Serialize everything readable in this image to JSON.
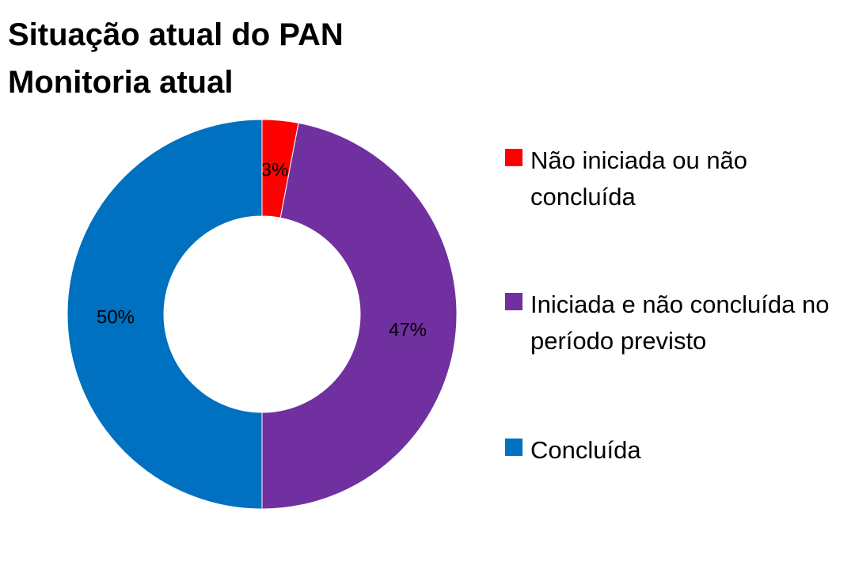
{
  "chart_data": {
    "type": "pie",
    "donut": true,
    "title": [
      "Situação atual do PAN",
      "Monitoria atual"
    ],
    "categories": [
      "Não iniciada ou não concluída",
      "Iniciada e não concluída no período previsto",
      "Concluída"
    ],
    "values": [
      3,
      47,
      50
    ],
    "data_labels": [
      "3%",
      "47%",
      "50%"
    ],
    "colors": [
      "#FF0000",
      "#7030A0",
      "#0070C0"
    ],
    "legend_position": "right"
  }
}
